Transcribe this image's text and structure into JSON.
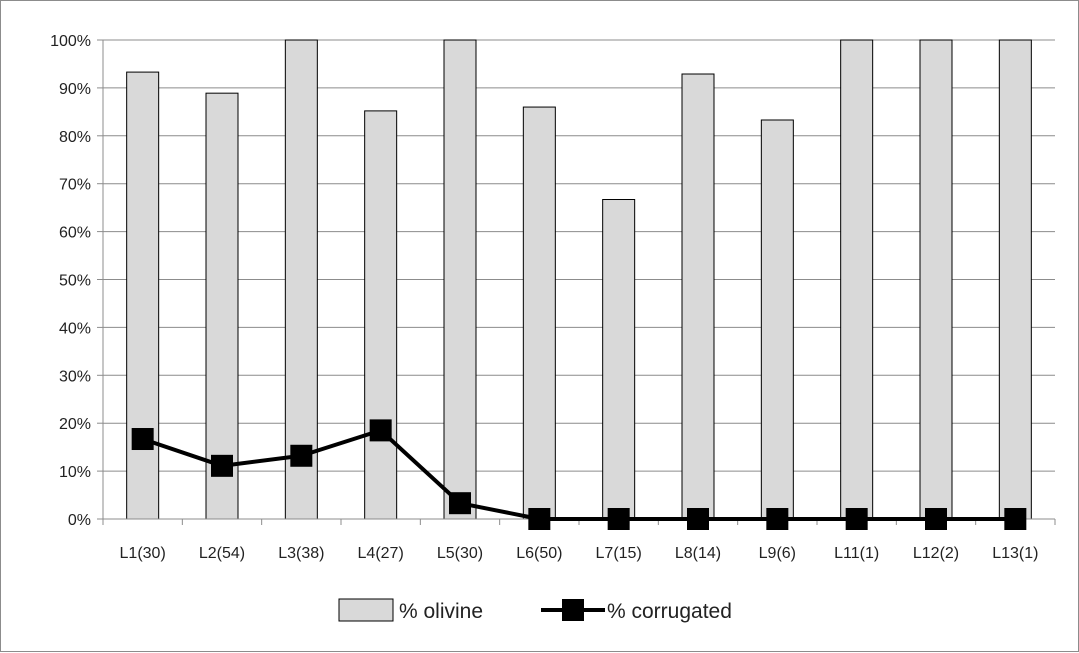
{
  "chart_data": {
    "type": "bar",
    "categories": [
      "L1(30)",
      "L2(54)",
      "L3(38)",
      "L4(27)",
      "L5(30)",
      "L6(50)",
      "L7(15)",
      "L8(14)",
      "L9(6)",
      "L11(1)",
      "L12(2)",
      "L13(1)"
    ],
    "series": [
      {
        "name": "% olivine",
        "kind": "bar",
        "color": "#d9d9d9",
        "values": [
          93.3,
          88.9,
          100,
          85.2,
          100,
          86,
          66.7,
          92.9,
          83.3,
          100,
          100,
          100
        ]
      },
      {
        "name": "% corrugated",
        "kind": "line",
        "color": "#000000",
        "marker": "square",
        "values": [
          16.7,
          11.1,
          13.2,
          18.5,
          3.3,
          0,
          0,
          0,
          0,
          0,
          0,
          0
        ]
      }
    ],
    "ylim": [
      0,
      100
    ],
    "y_ticks": [
      "0%",
      "10%",
      "20%",
      "30%",
      "40%",
      "50%",
      "60%",
      "70%",
      "80%",
      "90%",
      "100%"
    ],
    "grid": true,
    "legend_position": "bottom",
    "title": "",
    "xlabel": "",
    "ylabel": ""
  }
}
